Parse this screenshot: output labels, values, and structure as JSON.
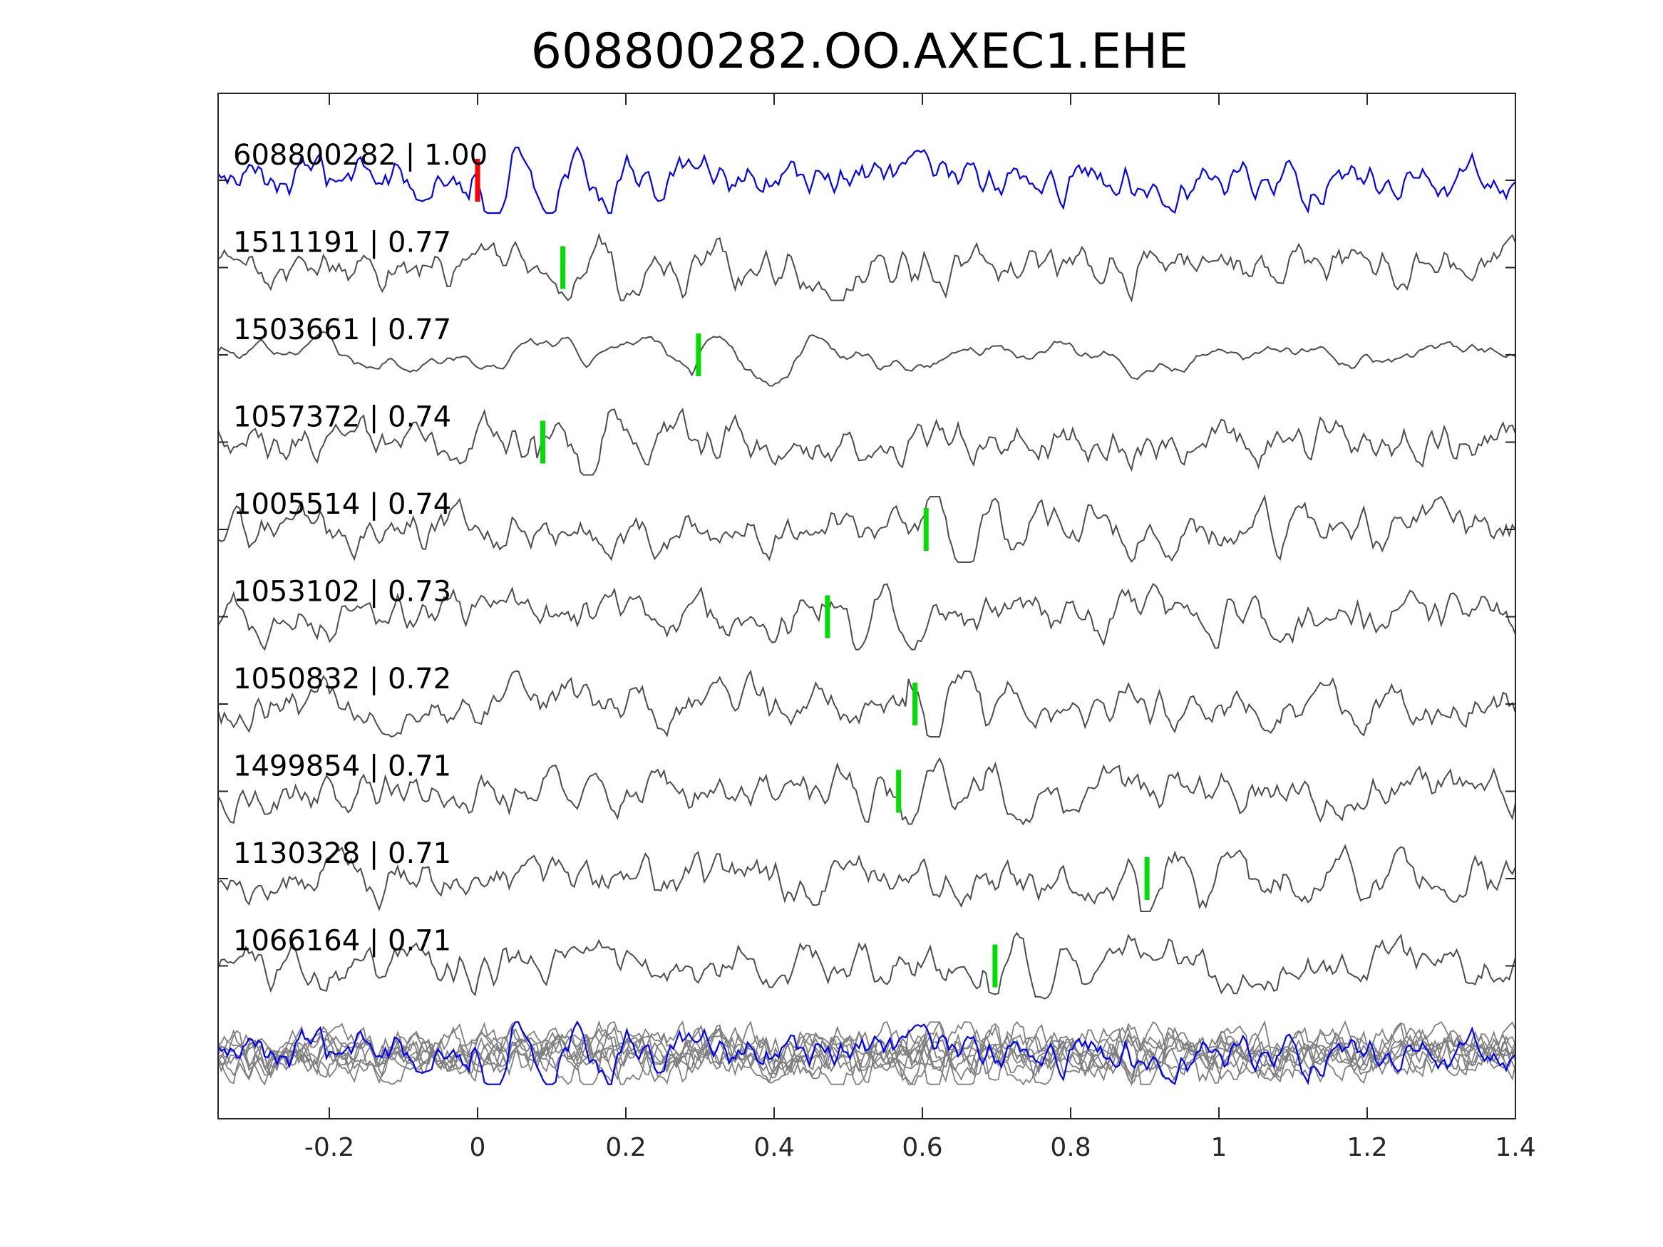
{
  "colors": {
    "reference_trace": "#0000ff",
    "match_trace": "#4d4d4d",
    "overlay_trace": "#808080",
    "reference_pick": "#ff0000",
    "match_pick": "#00dd00",
    "axis": "#262626"
  },
  "chart_data": {
    "type": "line",
    "title": "608800282.OO.AXEC1.EHE",
    "xlabel": "",
    "ylabel": "",
    "xlim": [
      -0.35,
      1.4
    ],
    "xticks": [
      -0.2,
      0,
      0.2,
      0.4,
      0.6,
      0.8,
      1,
      1.2,
      1.4
    ],
    "xtick_labels": [
      "-0.2",
      "0",
      "0.2",
      "0.4",
      "0.6",
      "0.8",
      "1",
      "1.2",
      "1.4"
    ],
    "grid": false,
    "legend": "none",
    "series": [
      {
        "label": "608800282 | 1.00",
        "pick": 0.0,
        "reference": true
      },
      {
        "label": "1511191 | 0.77",
        "pick": 0.115
      },
      {
        "label": "1503661 | 0.77",
        "pick": 0.298
      },
      {
        "label": "1057372 | 0.74",
        "pick": 0.088
      },
      {
        "label": "1005514 | 0.74",
        "pick": 0.605
      },
      {
        "label": "1053102 | 0.73",
        "pick": 0.472
      },
      {
        "label": "1050832 | 0.72",
        "pick": 0.59
      },
      {
        "label": "1499854 | 0.71",
        "pick": 0.568
      },
      {
        "label": "1130328 | 0.71",
        "pick": 0.903
      },
      {
        "label": "1066164 | 0.71",
        "pick": 0.698
      }
    ],
    "overlay": {
      "traces_shown": "all",
      "reference_highlighted": true
    }
  }
}
